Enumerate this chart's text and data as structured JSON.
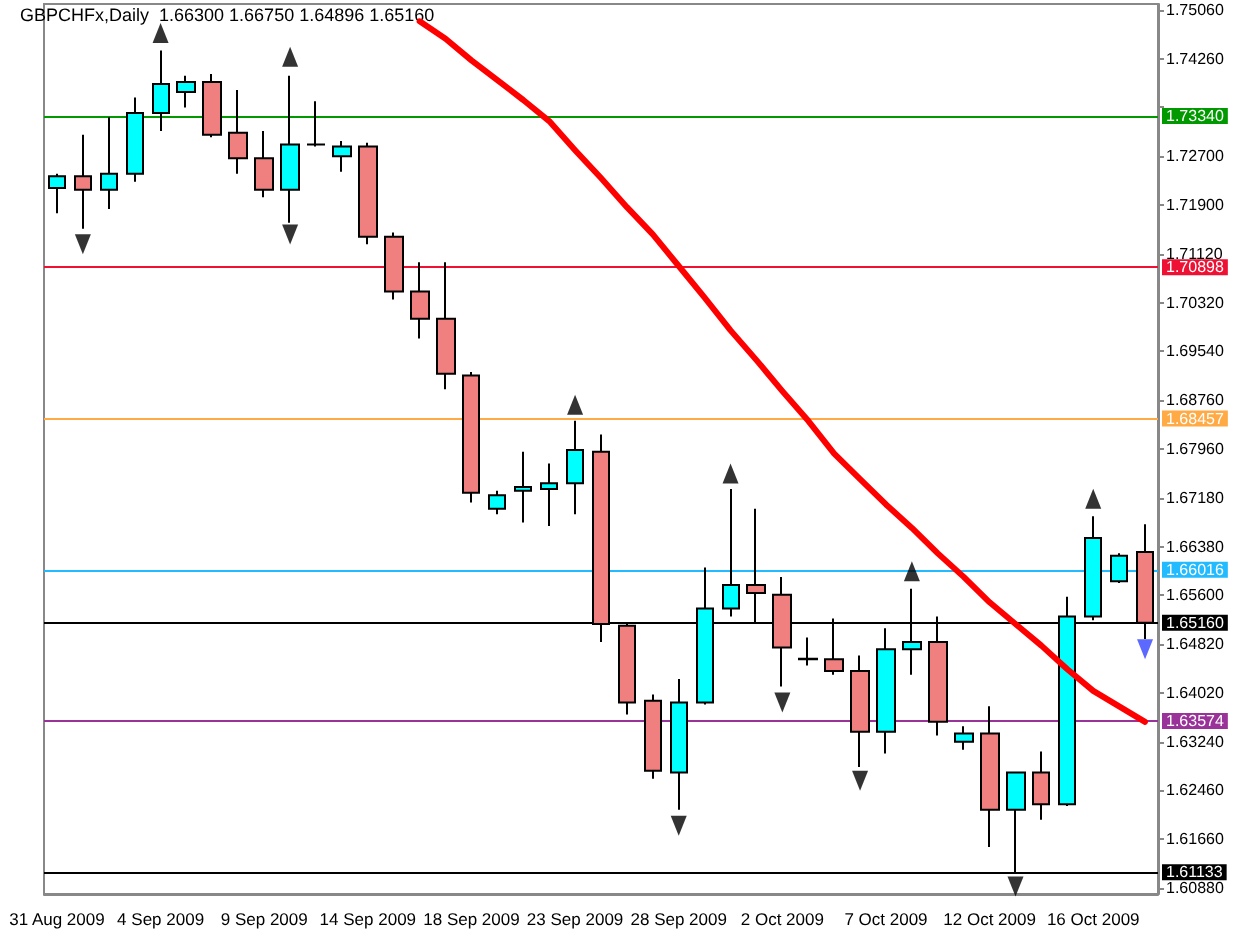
{
  "chart_data": {
    "type": "candlestick",
    "title": "GBPCHFx,Daily  1.66300 1.66750 1.64896 1.65160",
    "categories": [
      "31 Aug 2009",
      null,
      null,
      null,
      "4 Sep 2009",
      null,
      null,
      null,
      "9 Sep 2009",
      null,
      null,
      null,
      "14 Sep 2009",
      null,
      null,
      null,
      "18 Sep 2009",
      null,
      null,
      null,
      "23 Sep 2009",
      null,
      null,
      null,
      "28 Sep 2009",
      null,
      null,
      null,
      "2 Oct 2009",
      null,
      null,
      null,
      "7 Oct 2009",
      null,
      null,
      null,
      "12 Oct 2009",
      null,
      null,
      null,
      "16 Oct 2009",
      null,
      null
    ],
    "ohlc": [
      [
        1.7218,
        1.7241,
        1.7177,
        1.7237
      ],
      [
        1.7237,
        1.7304,
        1.7152,
        1.7215
      ],
      [
        1.7215,
        1.7332,
        1.7184,
        1.7241
      ],
      [
        1.7241,
        1.7364,
        1.7228,
        1.7339
      ],
      [
        1.7339,
        1.744,
        1.731,
        1.7386
      ],
      [
        1.7373,
        1.7399,
        1.7348,
        1.7389
      ],
      [
        1.7389,
        1.7402,
        1.73,
        1.7304
      ],
      [
        1.7307,
        1.7376,
        1.7241,
        1.7266
      ],
      [
        1.7266,
        1.731,
        1.7203,
        1.7215
      ],
      [
        1.7215,
        1.7399,
        1.7162,
        1.7288
      ],
      [
        1.7288,
        1.7358,
        1.7285,
        1.7288
      ],
      [
        1.7269,
        1.7294,
        1.7244,
        1.7285
      ],
      [
        1.7285,
        1.7291,
        1.7127,
        1.7139
      ],
      [
        1.7139,
        1.7146,
        1.7038,
        1.7051
      ],
      [
        1.7051,
        1.7098,
        1.6975,
        1.7007
      ],
      [
        1.7007,
        1.7098,
        1.6893,
        1.6918
      ],
      [
        1.6915,
        1.6921,
        1.671,
        1.6726
      ],
      [
        1.67,
        1.6729,
        1.6691,
        1.6722
      ],
      [
        1.6729,
        1.6792,
        1.6678,
        1.6735
      ],
      [
        1.6732,
        1.6773,
        1.6672,
        1.6741
      ],
      [
        1.6741,
        1.6842,
        1.6691,
        1.6795
      ],
      [
        1.6792,
        1.682,
        1.6485,
        1.6514
      ],
      [
        1.6511,
        1.6514,
        1.6368,
        1.6387
      ],
      [
        1.639,
        1.64,
        1.6264,
        1.6277
      ],
      [
        1.6274,
        1.6425,
        1.6214,
        1.6387
      ],
      [
        1.6387,
        1.6605,
        1.6384,
        1.6539
      ],
      [
        1.6539,
        1.6732,
        1.6526,
        1.6577
      ],
      [
        1.6577,
        1.67,
        1.6514,
        1.6564
      ],
      [
        1.6561,
        1.659,
        1.6413,
        1.6476
      ],
      [
        1.6457,
        1.6492,
        1.6447,
        1.6458
      ],
      [
        1.6457,
        1.6523,
        1.6432,
        1.6438
      ],
      [
        1.6438,
        1.6463,
        1.6283,
        1.634
      ],
      [
        1.634,
        1.6507,
        1.6305,
        1.6473
      ],
      [
        1.6473,
        1.6571,
        1.6432,
        1.6485
      ],
      [
        1.6485,
        1.6526,
        1.6334,
        1.6356
      ],
      [
        1.6324,
        1.6349,
        1.6311,
        1.6337
      ],
      [
        1.6337,
        1.6381,
        1.6154,
        1.6214
      ],
      [
        1.6214,
        1.6274,
        1.6113,
        1.6274
      ],
      [
        1.6274,
        1.6308,
        1.6198,
        1.6223
      ],
      [
        1.6223,
        1.6558,
        1.622,
        1.6526
      ],
      [
        1.6526,
        1.6688,
        1.652,
        1.6653
      ],
      [
        1.6583,
        1.6628,
        1.658,
        1.6624
      ],
      [
        1.663,
        1.6675,
        1.64896,
        1.6516
      ]
    ],
    "colors": [
      "#00ffff",
      "#f08080",
      "#00ffff",
      "#00ffff",
      "#00ffff",
      "#00ffff",
      "#f08080",
      "#f08080",
      "#f08080",
      "#00ffff",
      "#000000",
      "#00ffff",
      "#f08080",
      "#f08080",
      "#f08080",
      "#f08080",
      "#f08080",
      "#00ffff",
      "#00ffff",
      "#00ffff",
      "#00ffff",
      "#f08080",
      "#f08080",
      "#f08080",
      "#00ffff",
      "#00ffff",
      "#00ffff",
      "#f08080",
      "#f08080",
      "#000000",
      "#f08080",
      "#f08080",
      "#00ffff",
      "#00ffff",
      "#f08080",
      "#00ffff",
      "#f08080",
      "#00ffff",
      "#f08080",
      "#00ffff",
      "#00ffff",
      "#00ffff",
      "#f08080"
    ],
    "series": [
      {
        "type": "line",
        "color": "#ff0000",
        "values": [
          null,
          null,
          null,
          null,
          null,
          null,
          null,
          null,
          null,
          null,
          null,
          null,
          null,
          null,
          1.7487,
          1.7459,
          1.7424,
          1.7392,
          1.736,
          1.7326,
          1.7279,
          1.7234,
          1.7187,
          1.7143,
          1.7092,
          1.7041,
          1.6988,
          1.694,
          1.689,
          1.6842,
          1.6789,
          1.6748,
          1.6707,
          1.6669,
          1.6628,
          1.659,
          1.6549,
          1.6514,
          1.6479,
          1.6441,
          1.6406,
          1.6381,
          1.6356
        ]
      },
      {
        "type": "scatter",
        "color": "#000000",
        "marker": "triangle",
        "values": [
          null,
          null,
          null,
          null,
          1.7468,
          null,
          null,
          null,
          null,
          1.743,
          null,
          null,
          null,
          null,
          null,
          null,
          null,
          null,
          null,
          null,
          1.6868,
          null,
          null,
          null,
          null,
          null,
          1.6757,
          null,
          null,
          null,
          null,
          null,
          null,
          1.6599,
          null,
          null,
          null,
          null,
          null,
          null,
          1.6716,
          null,
          null
        ]
      },
      {
        "type": "scatter",
        "color": "#000000",
        "marker": "triangle",
        "values": [
          null,
          1.7127,
          null,
          null,
          null,
          null,
          null,
          null,
          null,
          1.7143,
          null,
          null,
          null,
          null,
          null,
          null,
          null,
          null,
          null,
          null,
          null,
          null,
          null,
          null,
          1.6188,
          null,
          null,
          null,
          1.6387,
          null,
          null,
          1.6261,
          null,
          null,
          null,
          null,
          null,
          1.609,
          null,
          null,
          null,
          null,
          null
        ]
      },
      {
        "type": "scatter",
        "color": "#3344ff",
        "marker": "triangle",
        "values": [
          null,
          null,
          null,
          null,
          null,
          null,
          null,
          null,
          null,
          null,
          null,
          null,
          null,
          null,
          null,
          null,
          null,
          null,
          null,
          null,
          null,
          null,
          null,
          null,
          null,
          null,
          null,
          null,
          null,
          null,
          null,
          null,
          null,
          null,
          null,
          null,
          null,
          null,
          null,
          null,
          null,
          null,
          1.6473
        ]
      }
    ],
    "ylim": [
      1.6078,
      1.7515
    ],
    "yticks": [
      {
        "value": 1.7506,
        "label": "1.75060"
      },
      {
        "value": 1.7426,
        "label": "1.74260"
      },
      {
        "value": 1.7348,
        "label": null
      },
      {
        "value": 1.727,
        "label": "1.72700"
      },
      {
        "value": 1.719,
        "label": "1.71900"
      },
      {
        "value": 1.7112,
        "label": "1.71120"
      },
      {
        "value": 1.7032,
        "label": "1.70320"
      },
      {
        "value": 1.6954,
        "label": "1.69540"
      },
      {
        "value": 1.6876,
        "label": "1.68760"
      },
      {
        "value": 1.6796,
        "label": "1.67960"
      },
      {
        "value": 1.6718,
        "label": "1.67180"
      },
      {
        "value": 1.6638,
        "label": "1.66380"
      },
      {
        "value": 1.656,
        "label": "1.65600"
      },
      {
        "value": 1.6482,
        "label": "1.64820"
      },
      {
        "value": 1.6402,
        "label": "1.64020"
      },
      {
        "value": 1.6324,
        "label": "1.63240"
      },
      {
        "value": 1.6246,
        "label": "1.62460"
      },
      {
        "value": 1.6166,
        "label": "1.61660"
      },
      {
        "value": 1.6088,
        "label": "1.60880"
      }
    ],
    "ref_lines": [
      {
        "axis": "y",
        "value": 1.7334,
        "label": "1.73340",
        "color": "#009900"
      },
      {
        "axis": "y",
        "value": 1.70898,
        "label": "1.70898",
        "color": "#ee1133"
      },
      {
        "axis": "y",
        "value": 1.68457,
        "label": "1.68457",
        "color": "#ffaa44"
      },
      {
        "axis": "y",
        "value": 1.66016,
        "label": "1.66016",
        "color": "#22bbff"
      },
      {
        "axis": "y",
        "value": 1.6516,
        "label": "1.65160",
        "color": "#000000"
      },
      {
        "axis": "y",
        "value": 1.63574,
        "label": "1.63574",
        "color": "#993399"
      },
      {
        "axis": "y",
        "value": 1.61133,
        "label": "1.61133",
        "color": "#000000"
      }
    ],
    "grid": false
  }
}
